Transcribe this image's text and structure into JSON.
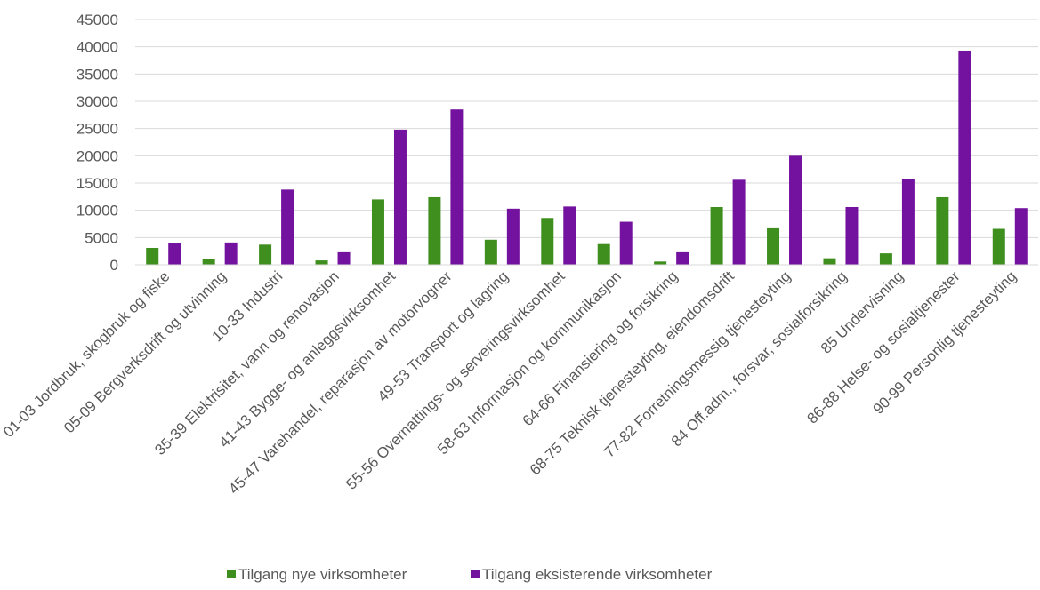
{
  "chart_data": {
    "type": "bar",
    "title": "",
    "xlabel": "",
    "ylabel": "",
    "ylim": [
      0,
      45000
    ],
    "yticks": [
      0,
      5000,
      10000,
      15000,
      20000,
      25000,
      30000,
      35000,
      40000,
      45000
    ],
    "grid": true,
    "legend_position": "bottom",
    "categories": [
      "01-03 Jordbruk, skogbruk og fiske",
      "05-09 Bergverksdrift og utvinning",
      "10-33 Industri",
      "35-39 Elektrisitet, vann og renovasjon",
      "41-43 Bygge- og anleggsvirksomhet",
      "45-47 Varehandel, reparasjon av motorvogner",
      "49-53 Transport og lagring",
      "55-56 Overnattings- og serveringsvirksomhet",
      "58-63 Informasjon og kommunikasjon",
      "64-66 Finansiering og forsikring",
      "68-75 Teknisk tjenesteyting, eiendomsdrift",
      "77-82 Forretningsmessig tjenesteyting",
      "84 Off.adm., forsvar, sosialforsikring",
      "85 Undervisning",
      "86-88 Helse- og sosialtjenester",
      "90-99 Personlig tjenesteyting"
    ],
    "series": [
      {
        "name": "Tilgang nye virksomheter",
        "color": "#3f8f1f",
        "values": [
          3100,
          1000,
          3700,
          800,
          12000,
          12400,
          4600,
          8600,
          3800,
          600,
          10600,
          6700,
          1200,
          2100,
          12400,
          6600
        ]
      },
      {
        "name": "Tilgang eksisterende virksomheter",
        "color": "#7412a0",
        "values": [
          4000,
          4100,
          13800,
          2300,
          24800,
          28500,
          10300,
          10700,
          7900,
          2300,
          15600,
          20000,
          10600,
          15700,
          39300,
          10400
        ]
      }
    ]
  }
}
